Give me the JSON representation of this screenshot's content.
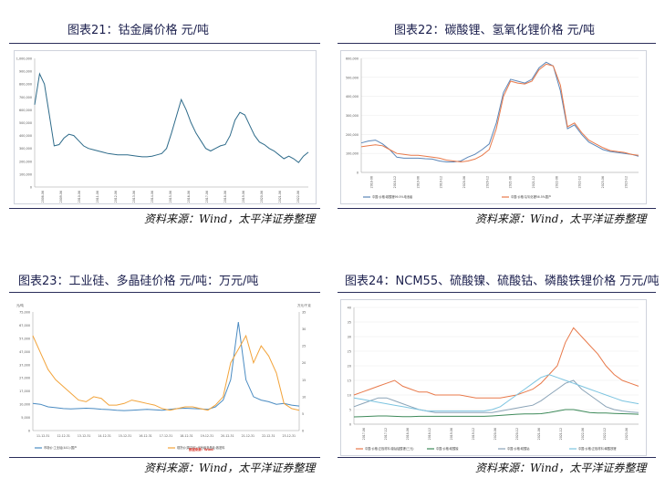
{
  "panels": [
    {
      "title": "图表21：钴金属价格 元/吨",
      "source": "资料来源：Wind，太平洋证券整理"
    },
    {
      "title": "图表22：碳酸锂、氢氧化锂价格 元/吨",
      "source": "资料来源：Wind，太平洋证券整理"
    },
    {
      "title": "图表23：工业硅、多晶硅价格 元/吨：万元/吨",
      "source": "资料来源：Wind，太平洋证券整理"
    },
    {
      "title": "图表24：NCM55、硫酸镍、硫酸钴、磷酸铁锂价格 万元/吨",
      "source": "资料来源：Wind，太平洋证券整理"
    }
  ],
  "chart_data": [
    {
      "type": "line",
      "title": "钴金属价格",
      "ylim": [
        0,
        1000000
      ],
      "yticks": [
        "0",
        "100,000",
        "200,000",
        "300,000",
        "400,000",
        "500,000",
        "600,000",
        "700,000",
        "800,000",
        "900,000",
        "1,000,000"
      ],
      "xticks": [
        "2008-06",
        "2009-06",
        "2010-06",
        "2011-06",
        "2012-06",
        "2013-06",
        "2014-06",
        "2015-06",
        "2016-06",
        "2017-06",
        "2018-06",
        "2019-06",
        "2020-06",
        "2021-06",
        "2022-06"
      ],
      "colors": {
        "series": "#2e6b8a"
      },
      "series": [
        {
          "values": [
            640000,
            880000,
            800000,
            560000,
            320000,
            330000,
            380000,
            410000,
            400000,
            360000,
            320000,
            300000,
            290000,
            280000,
            270000,
            260000,
            255000,
            250000,
            250000,
            250000,
            245000,
            240000,
            235000,
            235000,
            240000,
            250000,
            260000,
            300000,
            420000,
            550000,
            680000,
            600000,
            500000,
            420000,
            360000,
            300000,
            280000,
            300000,
            320000,
            330000,
            400000,
            520000,
            580000,
            560000,
            480000,
            400000,
            350000,
            330000,
            300000,
            280000,
            250000,
            220000,
            240000,
            220000,
            190000,
            240000,
            270000
          ]
        }
      ]
    },
    {
      "type": "line",
      "title": "碳酸锂、氢氧化锂价格",
      "ylim": [
        0,
        600000
      ],
      "yticks": [
        "0",
        "100,000",
        "200,000",
        "300,000",
        "400,000",
        "500,000",
        "600,000"
      ],
      "xticks": [
        "2018-06",
        "2018-12",
        "2019-06",
        "2019-12",
        "2020-06",
        "2020-12",
        "2021-06",
        "2021-12",
        "2022-06",
        "2022-12",
        "2023-06",
        "2023-12"
      ],
      "legend": [
        "中国:价格:碳酸锂99.5%电池级",
        "中国:价格:氢氧化锂56.5%国产"
      ],
      "legend_position": "bottom",
      "colors": {
        "lithium_carbonate": "#5b86b8",
        "lithium_hydroxide": "#e8794a"
      },
      "series": [
        {
          "name": "中国:价格:碳酸锂99.5%电池级",
          "values": [
            155000,
            165000,
            170000,
            150000,
            120000,
            80000,
            75000,
            75000,
            75000,
            72000,
            70000,
            60000,
            55000,
            55000,
            60000,
            80000,
            95000,
            120000,
            150000,
            260000,
            420000,
            490000,
            480000,
            470000,
            490000,
            550000,
            580000,
            560000,
            430000,
            230000,
            250000,
            200000,
            160000,
            140000,
            120000,
            110000,
            105000,
            100000,
            95000,
            85000
          ]
        },
        {
          "name": "中国:价格:氢氧化锂56.5%国产",
          "values": [
            135000,
            140000,
            145000,
            140000,
            120000,
            100000,
            95000,
            90000,
            90000,
            85000,
            80000,
            75000,
            65000,
            60000,
            55000,
            60000,
            70000,
            90000,
            120000,
            230000,
            400000,
            480000,
            470000,
            465000,
            480000,
            540000,
            570000,
            560000,
            460000,
            240000,
            260000,
            210000,
            170000,
            150000,
            130000,
            115000,
            110000,
            105000,
            95000,
            90000
          ]
        }
      ]
    },
    {
      "type": "line",
      "title": "工业硅、多晶硅价格",
      "ylim": [
        0,
        70000
      ],
      "ylim_right": [
        0,
        35
      ],
      "yticks": [
        "0",
        "5,000",
        "10,000",
        "17,000",
        "27,000",
        "37,000",
        "47,000",
        "57,000",
        "67,000",
        "75,000"
      ],
      "yticks_right": [
        "0",
        "5",
        "10",
        "15",
        "20",
        "25",
        "30",
        "35"
      ],
      "ylabel": "元/吨",
      "ylabel_right": "万元/千克",
      "xticks": [
        "11-12-31",
        "12-12-31",
        "13-12-31",
        "14-12-31",
        "15-12-31",
        "16-12-31",
        "17-12-31",
        "18-12-31",
        "19-12-31",
        "20-12-31",
        "21-12-31",
        "22-12-31",
        "23-12-31"
      ],
      "legend": [
        "市场价:工业硅(441):国产",
        "现货价(周平均):光伏级多晶硅:致密料"
      ],
      "note": "数据来源：Wind",
      "colors": {
        "industrial_si": "#4a8bc2",
        "polysilicon": "#f2a33a",
        "note": "#d9352b"
      },
      "series": [
        {
          "name": "市场价:工业硅(441):国产",
          "axis": "left",
          "values": [
            16000,
            15500,
            14000,
            13500,
            13000,
            12800,
            13000,
            13200,
            13000,
            12600,
            12400,
            12000,
            11800,
            12000,
            12300,
            12500,
            12200,
            12000,
            12500,
            13000,
            13200,
            13000,
            12800,
            12500,
            14000,
            18000,
            30000,
            64000,
            30000,
            20000,
            18000,
            17000,
            15500,
            16000,
            15000,
            14500
          ]
        },
        {
          "name": "现货价(周平均):光伏级多晶硅:致密料",
          "axis": "right",
          "values": [
            28,
            23,
            18,
            15,
            13,
            11,
            9,
            8.5,
            10,
            9.5,
            7.5,
            7.5,
            8,
            9,
            8.5,
            8,
            7.5,
            6.5,
            6,
            6.5,
            7,
            7,
            6.5,
            6,
            7.5,
            10,
            20,
            24,
            28,
            20,
            25,
            22,
            17,
            8,
            6.5,
            6
          ]
        }
      ]
    },
    {
      "type": "line",
      "title": "NCM55、硫酸镍、硫酸钴、磷酸铁锂价格",
      "ylim": [
        0,
        40
      ],
      "yticks": [
        "0",
        "5",
        "10",
        "15",
        "20",
        "25",
        "30",
        "35",
        "40"
      ],
      "xticks": [
        "2017-06",
        "2017-12",
        "2018-06",
        "2018-12",
        "2019-06",
        "2019-12",
        "2020-06",
        "2020-12",
        "2021-06",
        "2021-12",
        "2022-06",
        "2022-12",
        "2023-06"
      ],
      "legend": [
        "中国:价格:正极材料:镍钴锰酸锂(三元)",
        "中国:价格:硫酸镍",
        "中国:价格:硫酸钴",
        "中国:价格:正极材料:磷酸铁锂"
      ],
      "legend_position": "bottom",
      "colors": {
        "ncm55": "#e8794a",
        "nickel_sulfate": "#3e8a5a",
        "cobalt_sulfate": "#8aa3b7",
        "lfp": "#7cc4e0"
      },
      "series": [
        {
          "name": "中国:价格:正极材料:镍钴锰酸锂(三元)",
          "values": [
            10,
            11,
            12,
            13,
            14,
            15,
            13,
            12,
            11,
            11,
            10,
            10,
            10,
            10,
            9.5,
            9,
            9,
            9,
            9,
            9.5,
            10,
            11,
            12,
            14,
            17,
            20,
            28,
            33,
            30,
            27,
            24,
            20,
            17,
            15,
            14,
            13
          ]
        },
        {
          "name": "中国:价格:硫酸镍",
          "values": [
            2.5,
            2.6,
            2.7,
            2.8,
            2.8,
            2.7,
            2.6,
            2.6,
            2.7,
            2.7,
            2.7,
            2.7,
            2.7,
            2.7,
            2.7,
            2.7,
            2.7,
            2.8,
            3,
            3.2,
            3.4,
            3.5,
            3.5,
            3.6,
            4,
            4.5,
            5,
            5,
            4.5,
            4,
            3.8,
            3.8,
            3.7,
            3.6,
            3.5,
            3.4
          ]
        },
        {
          "name": "中国:价格:硫酸钴",
          "values": [
            6,
            7,
            8,
            9,
            9,
            8,
            7,
            6,
            5,
            4.5,
            4,
            4,
            4,
            4,
            4,
            4,
            4,
            4,
            4.5,
            5,
            5.5,
            6,
            6.5,
            8,
            10,
            12,
            14,
            15,
            12,
            10,
            8,
            6,
            5,
            4.5,
            4.2,
            4
          ]
        },
        {
          "name": "中国:价格:正极材料:磷酸铁锂",
          "values": [
            9,
            8.5,
            8,
            7.5,
            7,
            6.5,
            6,
            5.5,
            5,
            4.5,
            4.5,
            4.5,
            4.5,
            4.5,
            4.5,
            4.5,
            4.5,
            5,
            6,
            8,
            10,
            12,
            14,
            16,
            17,
            16,
            15,
            14,
            13,
            12,
            11,
            10,
            9,
            8,
            7.5,
            7
          ]
        }
      ]
    }
  ]
}
